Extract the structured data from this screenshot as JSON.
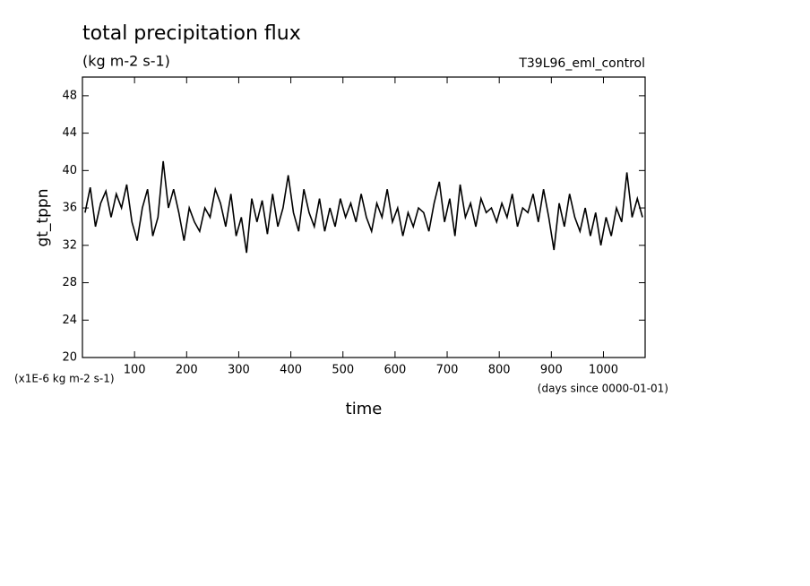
{
  "chart_data": {
    "type": "line",
    "title": "total precipitation flux",
    "subtitle": "(kg m-2 s-1)",
    "annotation": "T39L96_eml_control",
    "y_label": "gt_tppn",
    "y_unit_label": "(x1E-6 kg m-2 s-1)",
    "x_label": "time",
    "x_unit_label": "(days since 0000-01-01)",
    "xlim": [
      0,
      1080
    ],
    "xticks": [
      100,
      200,
      300,
      400,
      500,
      600,
      700,
      800,
      900,
      1000
    ],
    "ylim": [
      20,
      50
    ],
    "yticks": [
      20,
      24,
      28,
      32,
      36,
      40,
      44,
      48
    ],
    "grid": false,
    "x": [
      5,
      15,
      25,
      35,
      45,
      55,
      65,
      75,
      85,
      95,
      105,
      115,
      125,
      135,
      145,
      155,
      165,
      175,
      185,
      195,
      205,
      215,
      225,
      235,
      245,
      255,
      265,
      275,
      285,
      295,
      305,
      315,
      325,
      335,
      345,
      355,
      365,
      375,
      385,
      395,
      405,
      415,
      425,
      435,
      445,
      455,
      465,
      475,
      485,
      495,
      505,
      515,
      525,
      535,
      545,
      555,
      565,
      575,
      585,
      595,
      605,
      615,
      625,
      635,
      645,
      655,
      665,
      675,
      685,
      695,
      705,
      715,
      725,
      735,
      745,
      755,
      765,
      775,
      785,
      795,
      805,
      815,
      825,
      835,
      845,
      855,
      865,
      875,
      885,
      895,
      905,
      915,
      925,
      935,
      945,
      955,
      965,
      975,
      985,
      995,
      1005,
      1015,
      1025,
      1035,
      1045,
      1055,
      1065,
      1075
    ],
    "series": [
      {
        "name": "gt_tppn",
        "color": "#000000",
        "values": [
          35.5,
          38.2,
          34,
          36.5,
          37.8,
          35,
          37.5,
          36,
          38.5,
          34.5,
          32.5,
          36,
          38,
          33,
          35,
          41,
          36,
          38,
          35.5,
          32.5,
          36,
          34.5,
          33.5,
          36,
          35,
          38,
          36.5,
          34,
          37.5,
          33,
          35,
          31.2,
          37,
          34.5,
          36.8,
          33.2,
          37.5,
          34,
          36,
          39.5,
          35.5,
          33.5,
          38,
          35.5,
          34,
          37,
          33.5,
          36,
          34,
          37,
          35,
          36.5,
          34.5,
          37.5,
          35,
          33.5,
          36.5,
          35,
          38,
          34.5,
          36,
          33,
          35.5,
          34,
          36,
          35.5,
          33.5,
          36.5,
          38.8,
          34.5,
          37,
          33,
          38.5,
          35,
          36.5,
          34,
          37,
          35.5,
          36,
          34.5,
          36.5,
          35,
          37.5,
          34,
          36,
          35.5,
          37.5,
          34.5,
          38,
          35,
          31.5,
          36.5,
          34,
          37.5,
          35,
          33.5,
          36,
          33,
          35.5,
          32,
          35,
          33,
          36,
          34.5,
          39.8,
          35,
          37,
          35
        ]
      }
    ]
  }
}
